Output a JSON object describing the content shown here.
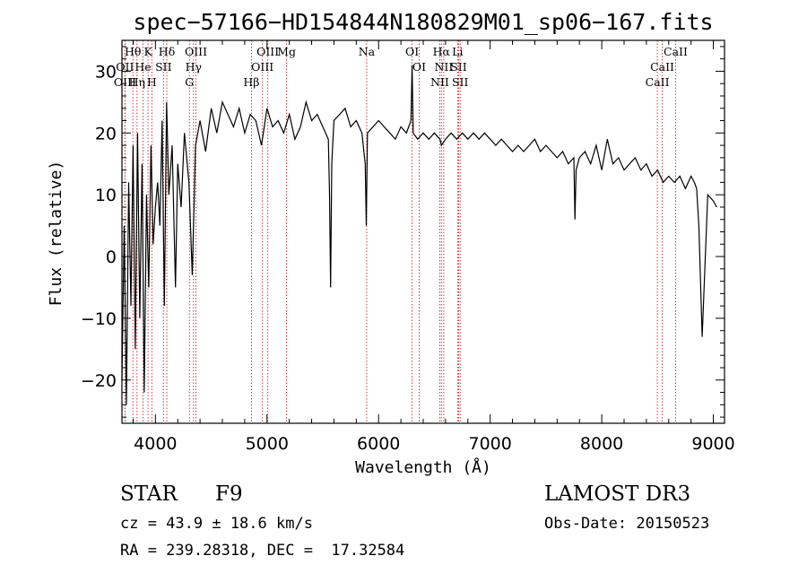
{
  "chart_data": {
    "type": "line",
    "title": "spec−57166−HD154844N180829M01_sp06−167.fits",
    "xlabel": "Wavelength (Å)",
    "ylabel": "Flux (relative)",
    "xlim": [
      3700,
      9100
    ],
    "ylim": [
      -27,
      35
    ],
    "xticks": [
      4000,
      5000,
      6000,
      7000,
      8000,
      9000
    ],
    "xtick_labels": [
      "4000",
      "5000",
      "6000",
      "7000",
      "8000",
      "9000"
    ],
    "yticks": [
      -20,
      -10,
      0,
      10,
      20,
      30
    ],
    "ytick_labels": [
      "−20",
      "−10",
      "0",
      "10",
      "20",
      "30"
    ],
    "series": [
      {
        "name": "flux",
        "x": [
          3700,
          3720,
          3740,
          3760,
          3780,
          3800,
          3820,
          3840,
          3860,
          3880,
          3900,
          3920,
          3940,
          3960,
          3980,
          4000,
          4020,
          4040,
          4060,
          4080,
          4100,
          4120,
          4150,
          4180,
          4200,
          4230,
          4260,
          4300,
          4330,
          4360,
          4400,
          4450,
          4500,
          4550,
          4600,
          4650,
          4700,
          4750,
          4800,
          4850,
          4900,
          4950,
          5000,
          5050,
          5100,
          5150,
          5200,
          5250,
          5300,
          5350,
          5400,
          5450,
          5500,
          5550,
          5560,
          5570,
          5580,
          5600,
          5650,
          5700,
          5750,
          5800,
          5850,
          5880,
          5890,
          5900,
          5950,
          6000,
          6050,
          6100,
          6150,
          6200,
          6250,
          6290,
          6300,
          6310,
          6350,
          6400,
          6450,
          6500,
          6550,
          6563,
          6600,
          6650,
          6700,
          6750,
          6800,
          6850,
          6900,
          6950,
          7000,
          7050,
          7100,
          7150,
          7200,
          7250,
          7300,
          7350,
          7400,
          7450,
          7500,
          7550,
          7600,
          7650,
          7700,
          7750,
          7760,
          7770,
          7800,
          7850,
          7900,
          7950,
          8000,
          8050,
          8100,
          8150,
          8200,
          8250,
          8300,
          8350,
          8400,
          8450,
          8500,
          8550,
          8600,
          8650,
          8700,
          8750,
          8800,
          8830,
          8850,
          8870,
          8900,
          8950,
          9000,
          9030
        ],
        "y": [
          -20,
          5,
          -24,
          12,
          -8,
          18,
          -15,
          20,
          -10,
          15,
          -22,
          10,
          -5,
          18,
          2,
          8,
          12,
          5,
          22,
          -8,
          25,
          10,
          18,
          -5,
          15,
          8,
          20,
          12,
          -3,
          18,
          22,
          17,
          24,
          20,
          25,
          23,
          21,
          24,
          20,
          23,
          22,
          18,
          24,
          21,
          22,
          20,
          23,
          19,
          21,
          25,
          22,
          23,
          21,
          19,
          10,
          -5,
          15,
          22,
          23,
          24,
          21,
          22,
          20,
          15,
          5,
          20,
          21,
          22,
          21,
          20,
          19,
          21,
          20,
          22,
          31,
          20,
          19,
          20,
          19,
          20,
          19,
          18,
          19,
          20,
          19,
          20,
          19,
          20,
          19,
          20,
          19,
          18,
          19,
          18,
          17,
          18,
          17,
          18,
          19,
          17,
          18,
          17,
          16,
          17,
          15,
          16,
          6,
          14,
          16,
          17,
          15,
          18,
          14,
          19,
          15,
          16,
          14,
          15,
          16,
          14,
          15,
          13,
          14,
          12,
          13,
          12,
          13,
          11,
          13,
          12,
          11,
          5,
          -13,
          10,
          9,
          8
        ]
      }
    ],
    "line_markers": [
      {
        "labels": [
          "Hθ",
          "OII",
          "OIII"
        ],
        "x": [
          3798,
          3727,
          3727
        ]
      },
      {
        "labels": [
          "K",
          "He",
          "Hη"
        ],
        "x": [
          3934,
          3889,
          3835
        ]
      },
      {
        "labels": [
          "Hδ",
          "SII",
          "H"
        ],
        "x": [
          4102,
          4072,
          3968
        ]
      },
      {
        "labels": [
          "OIII",
          "Hγ",
          "G"
        ],
        "x": [
          4363,
          4341,
          4305
        ]
      },
      {
        "labels": [
          "OIII",
          "OIII",
          "Hβ",
          "Mg"
        ],
        "x": [
          5007,
          4959,
          4861,
          5175
        ]
      },
      {
        "labels": [
          "Na"
        ],
        "x": [
          5893
        ]
      },
      {
        "labels": [
          "OI",
          "OI"
        ],
        "x": [
          6300,
          6364
        ]
      },
      {
        "labels": [
          "Hα",
          "SII",
          "NII",
          "Li",
          "NII",
          "SII"
        ],
        "x": [
          6563,
          6717,
          6548,
          6708,
          6584,
          6731
        ]
      },
      {
        "labels": [
          "CaII",
          "CaII",
          "CaII"
        ],
        "x": [
          8662,
          8542,
          8498
        ]
      }
    ]
  },
  "info": {
    "object_class": "STAR",
    "subclass": "F9",
    "survey": "LAMOST DR3",
    "redshift": "cz = 43.9 ± 18.6 km/s",
    "obs_date": "Obs-Date: 20150523",
    "coords": "RA = 239.28318, DEC =  17.32584"
  }
}
